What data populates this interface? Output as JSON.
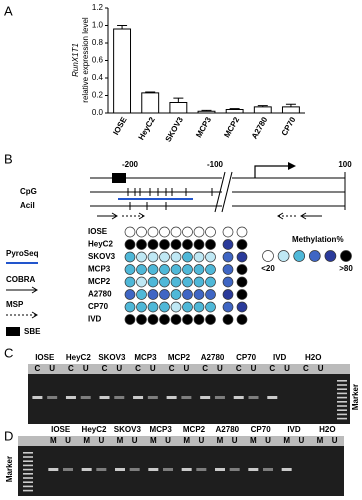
{
  "panel_labels": [
    "A",
    "B",
    "C",
    "D"
  ],
  "chart_data": {
    "type": "bar",
    "ylabel_gene": "RunX1T1",
    "ylabel": "relative expression level",
    "categories": [
      "IOSE",
      "HeyC2",
      "SKOV3",
      "MCP3",
      "MCP2",
      "A2780",
      "CP70"
    ],
    "values": [
      0.96,
      0.23,
      0.12,
      0.02,
      0.04,
      0.07,
      0.07
    ],
    "errors": [
      0.04,
      0.01,
      0.05,
      0.01,
      0.01,
      0.015,
      0.03
    ],
    "color": "#ffffff",
    "ylim": [
      0,
      1.2
    ],
    "yticks": [
      {
        "value": 0,
        "label": "0.0"
      },
      {
        "value": 0.2,
        "label": "0.2"
      },
      {
        "value": 0.4,
        "label": "0.4"
      },
      {
        "value": 0.6,
        "label": "0.6"
      },
      {
        "value": 0.8,
        "label": "0.8"
      },
      {
        "value": 1,
        "label": "1.0"
      },
      {
        "value": 1.2,
        "label": "1.2"
      }
    ]
  },
  "panel_b": {
    "positions": [
      "-200",
      "-100",
      "100"
    ],
    "tracks": [
      "CpG",
      "AciI"
    ],
    "sbe": "SBE",
    "methods": [
      "PyroSeq",
      "COBRA",
      "MSP"
    ],
    "samples": [
      "IOSE",
      "HeyC2",
      "SKOV3",
      "MCP3",
      "MCP2",
      "A2780",
      "CP70",
      "IVD"
    ],
    "cells": [
      [
        "#ffffff",
        "#ffffff",
        "#ffffff",
        "#ffffff",
        "#ffffff",
        "#ffffff",
        "#ffffff",
        "#ffffff",
        "#ffffff",
        "#ffffff"
      ],
      [
        "#000000",
        "#000000",
        "#000000",
        "#000000",
        "#000000",
        "#000000",
        "#000000",
        "#000000",
        "#2a3a9a",
        "#000000"
      ],
      [
        "#4fb8d8",
        "#bfe8f4",
        "#bfe8f4",
        "#bfe8f4",
        "#bfe8f4",
        "#4fb8d8",
        "#bfe8f4",
        "#bfe8f4",
        "#3f66c4",
        "#2a3a9a"
      ],
      [
        "#4fb8d8",
        "#4fb8d8",
        "#4fb8d8",
        "#4fb8d8",
        "#4fb8d8",
        "#4fb8d8",
        "#4fb8d8",
        "#4fb8d8",
        "#3f66c4",
        "#000000"
      ],
      [
        "#4fb8d8",
        "#bfe8f4",
        "#4fb8d8",
        "#4fb8d8",
        "#4fb8d8",
        "#4fb8d8",
        "#4fb8d8",
        "#4fb8d8",
        "#3f66c4",
        "#000000"
      ],
      [
        "#3f66c4",
        "#4fb8d8",
        "#3f66c4",
        "#3f66c4",
        "#4fb8d8",
        "#3f66c4",
        "#3f66c4",
        "#3f66c4",
        "#2a3a9a",
        "#000000"
      ],
      [
        "#4fb8d8",
        "#4fb8d8",
        "#4fb8d8",
        "#4fb8d8",
        "#bfe8f4",
        "#4fb8d8",
        "#4fb8d8",
        "#4fb8d8",
        "#3f66c4",
        "#2a3a9a"
      ],
      [
        "#000000",
        "#000000",
        "#000000",
        "#000000",
        "#000000",
        "#000000",
        "#000000",
        "#000000",
        "#000000",
        "#000000"
      ]
    ],
    "legend": {
      "title": "Methylation%",
      "low": "<20",
      "high": ">80",
      "colors": [
        "#ffffff",
        "#bfe8f4",
        "#4fb8d8",
        "#3f66c4",
        "#2a3a9a",
        "#000000"
      ]
    }
  },
  "panel_c": {
    "lanes": [
      "IOSE",
      "HeyC2",
      "SKOV3",
      "MCP3",
      "MCP2",
      "A2780",
      "CP70",
      "IVD",
      "H2O"
    ],
    "sub": [
      "C",
      "U"
    ],
    "marker": "Marker"
  },
  "panel_d": {
    "lanes": [
      "IOSE",
      "HeyC2",
      "SKOV3",
      "MCP3",
      "MCP2",
      "A2780",
      "CP70",
      "IVD",
      "H2O"
    ],
    "sub": [
      "M",
      "U"
    ],
    "marker": "Marker"
  }
}
